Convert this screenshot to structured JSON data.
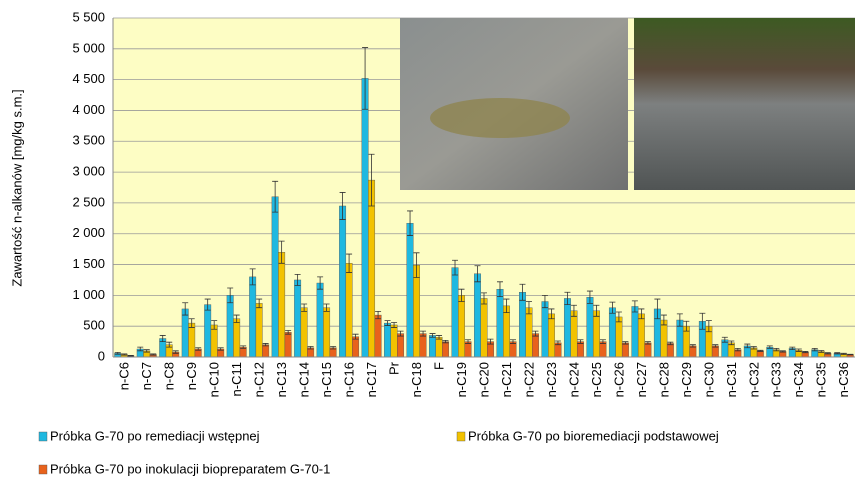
{
  "chart_data": {
    "type": "bar",
    "y_label": "Zawartość n-alkanów [mg/kg s.m.]",
    "categories": [
      "n-C6",
      "n-C7",
      "n-C8",
      "n-C9",
      "n-C10",
      "n-C11",
      "n-C12",
      "n-C13",
      "n-C14",
      "n-C15",
      "n-C16",
      "n-C17",
      "Pr",
      "n-C18",
      "F",
      "n-C19",
      "n-C20",
      "n-C21",
      "n-C22",
      "n-C23",
      "n-C24",
      "n-C25",
      "n-C26",
      "n-C27",
      "n-C28",
      "n-C29",
      "n-C30",
      "n-C31",
      "n-C32",
      "n-C33",
      "n-C34",
      "n-C35",
      "n-C36"
    ],
    "series": [
      {
        "name": "Próbka G-70 po remediacji wstępnej",
        "color": "#1fb8e0",
        "values": [
          60,
          130,
          300,
          780,
          850,
          1000,
          1300,
          2600,
          1250,
          1200,
          2450,
          4520,
          550,
          2170,
          350,
          1450,
          1350,
          1100,
          1050,
          900,
          950,
          970,
          800,
          820,
          780,
          600,
          580,
          280,
          180,
          160,
          140,
          120,
          60
        ],
        "errors": [
          15,
          30,
          50,
          100,
          90,
          120,
          130,
          250,
          90,
          100,
          220,
          500,
          40,
          200,
          30,
          120,
          130,
          120,
          130,
          100,
          100,
          100,
          90,
          90,
          160,
          100,
          130,
          40,
          30,
          20,
          20,
          20,
          10
        ]
      },
      {
        "name": "Próbka G-70 po bioremediacji podstawowej",
        "color": "#f2c200",
        "values": [
          40,
          100,
          200,
          550,
          520,
          620,
          870,
          1700,
          800,
          800,
          1520,
          2870,
          520,
          1490,
          320,
          1000,
          950,
          830,
          800,
          700,
          750,
          750,
          650,
          700,
          600,
          500,
          500,
          230,
          150,
          120,
          110,
          90,
          50
        ],
        "errors": [
          10,
          20,
          40,
          70,
          70,
          60,
          70,
          180,
          60,
          60,
          150,
          420,
          40,
          200,
          30,
          100,
          90,
          110,
          100,
          80,
          90,
          90,
          80,
          80,
          80,
          80,
          90,
          30,
          20,
          20,
          20,
          15,
          10
        ]
      },
      {
        "name": "Próbka G-70 po inokulacji biopreparatem G-70-1",
        "color": "#e8621c",
        "values": [
          20,
          40,
          80,
          130,
          130,
          160,
          200,
          400,
          150,
          150,
          330,
          680,
          380,
          380,
          250,
          250,
          250,
          250,
          380,
          230,
          250,
          250,
          230,
          230,
          220,
          180,
          180,
          120,
          100,
          90,
          80,
          60,
          40
        ],
        "errors": [
          5,
          10,
          20,
          20,
          20,
          20,
          20,
          30,
          20,
          20,
          40,
          60,
          40,
          40,
          20,
          30,
          40,
          30,
          40,
          30,
          30,
          30,
          20,
          20,
          20,
          20,
          20,
          20,
          10,
          10,
          10,
          10,
          5
        ]
      }
    ],
    "ylim": [
      0,
      5500
    ],
    "yticks": [
      0,
      500,
      {
        "value": 1000,
        "label": "1 000"
      },
      {
        "value": 1500,
        "label": "1 500"
      },
      {
        "value": 2000,
        "label": "2 000"
      },
      {
        "value": 2500,
        "label": "2 500"
      },
      {
        "value": 3000,
        "label": "3 000"
      },
      {
        "value": 3500,
        "label": "3 500"
      },
      {
        "value": 4000,
        "label": "4 000"
      },
      {
        "value": 4500,
        "label": "4 500"
      },
      {
        "value": 5000,
        "label": "5 000"
      },
      {
        "value": 5500,
        "label": "5 500"
      }
    ],
    "grid": true
  }
}
